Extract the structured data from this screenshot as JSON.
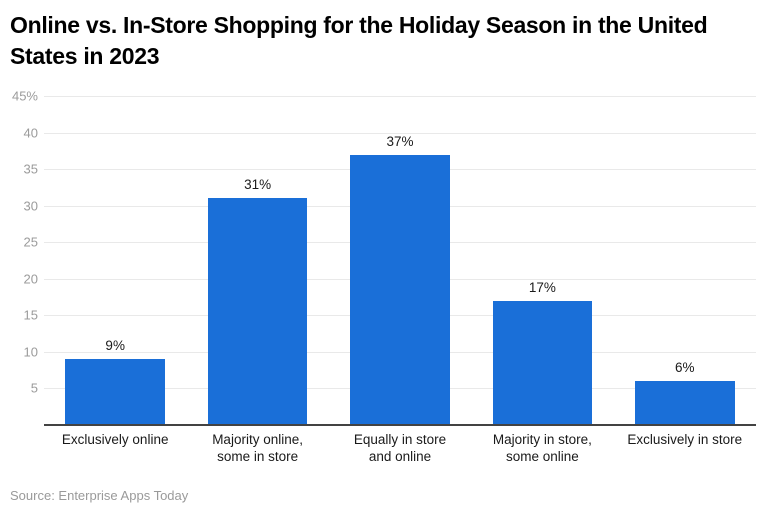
{
  "header": {
    "title": "Online vs. In-Store Shopping for the Holiday Season in the United States in 2023"
  },
  "footer": {
    "source": "Source: Enterprise Apps Today"
  },
  "colors": {
    "bar": "#1a6fd8",
    "grid": "#e9e9e9",
    "axis_line": "#434343",
    "tick_label": "#9b9b9b",
    "category_label": "#1a1a1a",
    "value_label": "#1a1a1a",
    "title": "#000000",
    "source": "#9a9a9a",
    "background": "#ffffff"
  },
  "chart_data": {
    "type": "bar",
    "title": "Online vs. In-Store Shopping for the Holiday Season in the United States in 2023",
    "categories": [
      "Exclusively online",
      "Majority online,\nsome in store",
      "Equally in store\nand online",
      "Majority in store,\nsome online",
      "Exclusively in store"
    ],
    "values": [
      9,
      31,
      37,
      17,
      6
    ],
    "value_labels": [
      "9%",
      "31%",
      "37%",
      "17%",
      "6%"
    ],
    "xlabel": "",
    "ylabel": "",
    "ylim": [
      0,
      45
    ],
    "yticks": [
      {
        "value": 45,
        "label": "45%"
      },
      {
        "value": 40,
        "label": "40"
      },
      {
        "value": 35,
        "label": "35"
      },
      {
        "value": 30,
        "label": "30"
      },
      {
        "value": 25,
        "label": "25"
      },
      {
        "value": 20,
        "label": "20"
      },
      {
        "value": 15,
        "label": "15"
      },
      {
        "value": 10,
        "label": "10"
      },
      {
        "value": 5,
        "label": "5"
      }
    ],
    "grid": true,
    "legend": "none",
    "bar_color": "#1a6fd8",
    "source": "Source: Enterprise Apps Today"
  }
}
